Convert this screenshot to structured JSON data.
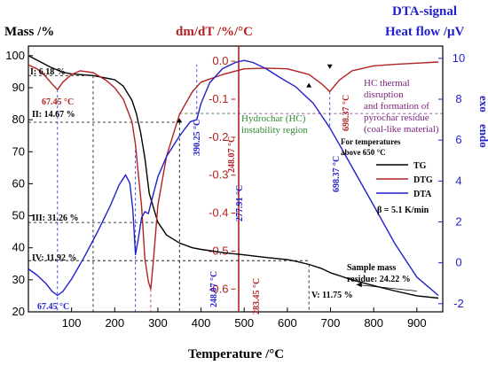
{
  "chart_data": {
    "type": "line",
    "title_left": "Mass /%",
    "title_center": "dm/dT /%/°C",
    "title_right_1": "DTA-signal",
    "title_right_2": "Heat flow /μV",
    "xlabel": "Temperature /°C",
    "exo_label": "exo",
    "endo_label": "endo",
    "x_range": [
      0,
      960
    ],
    "x_ticks": [
      "100",
      "200",
      "300",
      "400",
      "500",
      "600",
      "700",
      "800",
      "900"
    ],
    "mass_axis": {
      "range": [
        20,
        103
      ],
      "ticks": [
        "20",
        "30",
        "40",
        "50",
        "60",
        "70",
        "80",
        "90",
        "100"
      ]
    },
    "dmdt_axis": {
      "range": [
        -0.66,
        0.04
      ],
      "ticks": [
        "0.0",
        "-0.1",
        "-0.2",
        "-0.3",
        "-0.4",
        "-0.5",
        "-0.6"
      ]
    },
    "dta_axis": {
      "range": [
        -2.4,
        10.6
      ],
      "ticks": [
        "10",
        "8",
        "6",
        "4",
        "2",
        "0",
        "-2"
      ]
    },
    "series": [
      {
        "name": "TG",
        "color": "#000000",
        "axis": "mass",
        "x": [
          0,
          50,
          80,
          100,
          150,
          200,
          220,
          240,
          250,
          260,
          270,
          280,
          300,
          320,
          350,
          380,
          400,
          450,
          500,
          550,
          600,
          620,
          650,
          680,
          700,
          750,
          800,
          850,
          900,
          950
        ],
        "y": [
          100,
          96.5,
          94.8,
          94.3,
          93.8,
          92.5,
          90.5,
          86,
          82,
          76,
          68,
          57,
          48,
          44,
          41.5,
          40,
          39.5,
          38.5,
          37.8,
          37,
          36.3,
          35.8,
          34.8,
          33.5,
          32.2,
          30,
          28.2,
          26.5,
          25,
          24.3
        ]
      },
      {
        "name": "DTG",
        "color": "#b22222",
        "axis": "dmdt",
        "x": [
          0,
          20,
          40,
          55,
          67.45,
          80,
          100,
          120,
          150,
          180,
          200,
          220,
          240,
          248.07,
          255,
          262,
          270,
          277.91,
          283.45,
          290,
          300,
          320,
          350,
          380,
          400,
          450,
          500,
          550,
          600,
          650,
          680,
          698.37,
          720,
          750,
          800,
          850,
          900,
          950
        ],
        "y": [
          -0.01,
          -0.02,
          -0.04,
          -0.06,
          -0.075,
          -0.055,
          -0.035,
          -0.025,
          -0.03,
          -0.05,
          -0.07,
          -0.1,
          -0.16,
          -0.22,
          -0.3,
          -0.38,
          -0.52,
          -0.58,
          -0.6,
          -0.52,
          -0.38,
          -0.25,
          -0.14,
          -0.08,
          -0.055,
          -0.035,
          -0.02,
          -0.018,
          -0.02,
          -0.035,
          -0.06,
          -0.08,
          -0.05,
          -0.025,
          -0.012,
          -0.008,
          -0.005,
          -0.002
        ]
      },
      {
        "name": "DTA",
        "color": "#1f1fcc",
        "axis": "dta",
        "x": [
          0,
          20,
          40,
          55,
          67.45,
          80,
          100,
          130,
          160,
          190,
          210,
          225,
          235,
          242,
          248.07,
          255,
          262,
          270,
          277.91,
          285,
          300,
          320,
          350,
          375,
          390.25,
          400,
          420,
          450,
          480,
          500,
          520,
          550,
          580,
          620,
          660,
          698.37,
          720,
          760,
          800,
          850,
          900,
          950
        ],
        "y": [
          -0.3,
          -0.6,
          -1.0,
          -1.4,
          -1.6,
          -1.4,
          -0.8,
          0.3,
          1.5,
          2.8,
          3.8,
          4.3,
          3.9,
          2.6,
          0.4,
          1.2,
          2.2,
          2.5,
          2.4,
          3.0,
          4.2,
          5.2,
          6.2,
          6.9,
          7.0,
          7.8,
          8.8,
          9.5,
          9.8,
          9.9,
          9.8,
          9.5,
          9.1,
          8.6,
          7.8,
          6.6,
          5.8,
          4.3,
          2.8,
          0.9,
          -0.7,
          -1.6
        ]
      }
    ],
    "legend": {
      "entries": [
        "TG",
        "DTG",
        "DTA"
      ],
      "rate_label": "β = 5.1 K/min",
      "position": "right-middle"
    },
    "annotations": {
      "mass_steps": [
        "I: 6.18 %",
        "II: 14.67 %",
        "III: 31.26 %",
        "IV: 11.92 %",
        "V: 11.75 %"
      ],
      "peaks": {
        "dtg_67": "67.45 °C",
        "dta_67": "67.45 °C",
        "dtg_248": "248.07 °C",
        "dta_248": "248.07 °C",
        "dta_277": "277.91 °C",
        "dtg_283": "283.45 °C",
        "dta_390": "390.25 °C",
        "dtg_698": "698.37 °C",
        "dta_698": "698.37 °C"
      },
      "hydrochar_1": "Hydrochar (HC)",
      "hydrochar_2": "instability region",
      "hc_text_1": "HC thermal",
      "hc_text_2": "disruption",
      "hc_text_3": "and formation of",
      "hc_text_4": "pyrochar residue",
      "hc_text_5": "(coal-like material)",
      "for_temp_1": "For temperatures",
      "for_temp_2": "above 650 °C",
      "residue_1": "Sample mass",
      "residue_2": "residue: 24.22 %"
    }
  }
}
